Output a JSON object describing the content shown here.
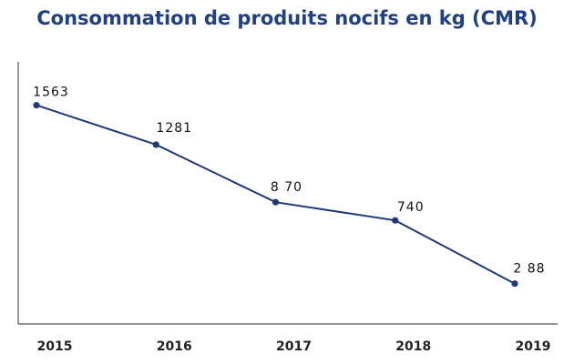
{
  "chart_data": {
    "type": "line",
    "title": "Consommation de produits nocifs en kg (CMR)",
    "xlabel": "",
    "ylabel": "",
    "categories": [
      "2015",
      "2016",
      "2017",
      "2018",
      "2019"
    ],
    "series": [
      {
        "values": [
          1563,
          1281,
          870,
          740,
          288
        ],
        "color": "#1f3a7a"
      }
    ],
    "data_labels": [
      "1563",
      "1281",
      "8 70",
      "740",
      "2 88"
    ],
    "ylim": [
      0,
      1750
    ],
    "grid": false,
    "legend": "none"
  }
}
